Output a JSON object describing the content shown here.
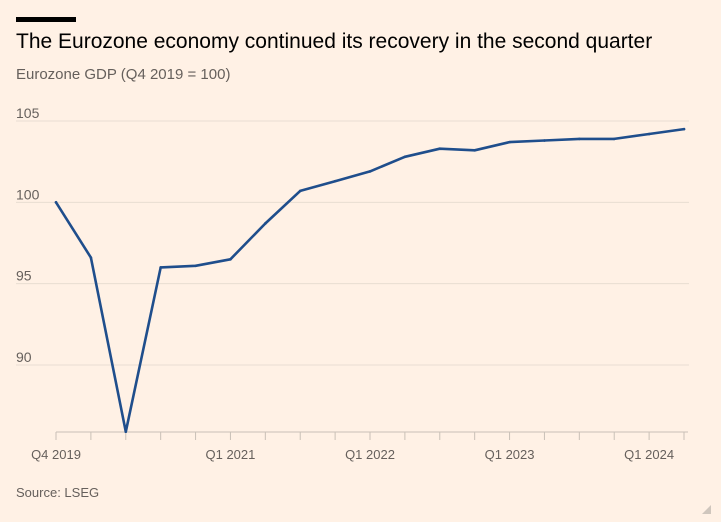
{
  "header": {
    "title": "The Eurozone economy continued its recovery in the second quarter",
    "subtitle": "Eurozone GDP (Q4 2019 = 100)"
  },
  "footer": {
    "source": "Source: LSEG"
  },
  "colors": {
    "background": "#fff1e5",
    "line": "#1f4e8c",
    "grid": "#e8ddd2",
    "axis": "#c9c0b7",
    "tick_text": "#66605c"
  },
  "chart_data": {
    "type": "line",
    "title": "The Eurozone economy continued its recovery in the second quarter",
    "subtitle": "Eurozone GDP (Q4 2019 = 100)",
    "xlabel": "",
    "ylabel": "",
    "x": [
      "Q4 2019",
      "Q1 2020",
      "Q2 2020",
      "Q3 2020",
      "Q4 2020",
      "Q1 2021",
      "Q2 2021",
      "Q3 2021",
      "Q4 2021",
      "Q1 2022",
      "Q2 2022",
      "Q3 2022",
      "Q4 2022",
      "Q1 2023",
      "Q2 2023",
      "Q3 2023",
      "Q4 2023",
      "Q1 2024",
      "Q2 2024"
    ],
    "series": [
      {
        "values": [
          100.0,
          96.6,
          85.9,
          96.0,
          96.1,
          96.5,
          98.7,
          100.7,
          101.3,
          101.9,
          102.8,
          103.3,
          103.2,
          103.7,
          103.8,
          103.9,
          103.9,
          104.2,
          104.5
        ]
      }
    ],
    "xtick_labels": [
      {
        "index": 0,
        "label": "Q4 2019"
      },
      {
        "index": 5,
        "label": "Q1 2021"
      },
      {
        "index": 9,
        "label": "Q1 2022"
      },
      {
        "index": 13,
        "label": "Q1 2023"
      },
      {
        "index": 17,
        "label": "Q1 2024"
      }
    ],
    "yticks": [
      90,
      95,
      100,
      105
    ],
    "ylim": [
      86,
      107
    ],
    "grid": "horizontal",
    "legend": "none"
  }
}
